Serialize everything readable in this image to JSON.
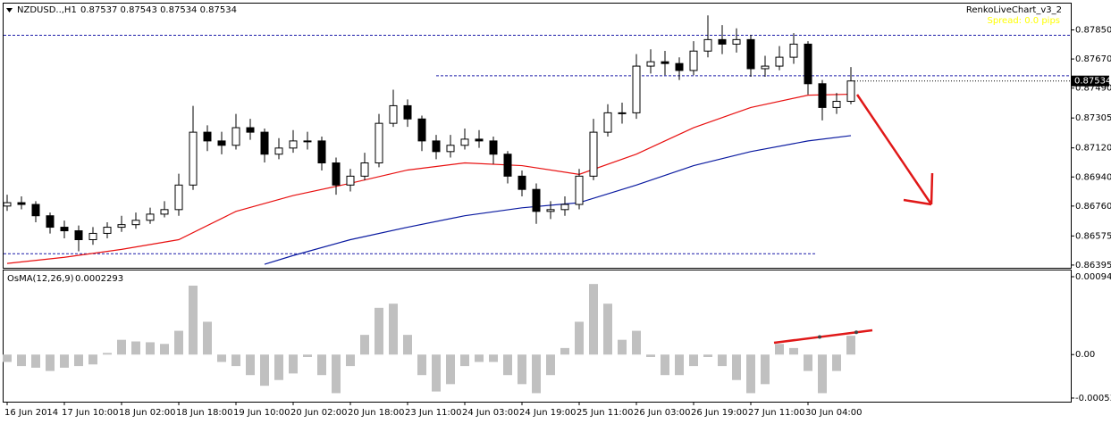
{
  "chart_data": [
    {
      "type": "candlestick",
      "title": "NZDUSD..,H1",
      "subtitle": "0.87537 0.87543 0.87534 0.87534",
      "watermark": [
        "RenkoLiveChart_v3_2",
        "Spread: 0.0 pips"
      ],
      "categories": [
        "16 Jun 2014",
        null,
        null,
        null,
        "17 Jun 10:00",
        null,
        null,
        null,
        "18 Jun 02:00",
        null,
        null,
        null,
        "18 Jun 18:00",
        null,
        null,
        null,
        "19 Jun 10:00",
        null,
        null,
        null,
        "20 Jun 02:00",
        null,
        null,
        null,
        "20 Jun 18:00",
        null,
        null,
        null,
        "23 Jun 11:00",
        null,
        null,
        null,
        "24 Jun 03:00",
        null,
        null,
        null,
        "24 Jun 19:00",
        null,
        null,
        null,
        "25 Jun 11:00",
        null,
        null,
        null,
        "26 Jun 03:00",
        null,
        null,
        null,
        "26 Jun 19:00",
        null,
        null,
        null,
        "27 Jun 11:00",
        null,
        null,
        null,
        "30 Jun 04:00",
        null,
        null,
        null
      ],
      "open": [
        0.8676,
        0.86781,
        0.8677,
        0.867,
        0.86629,
        0.86607,
        0.86552,
        0.86591,
        0.86629,
        0.86645,
        0.86672,
        0.8671,
        0.86738,
        0.8689,
        0.87217,
        0.87163,
        0.87136,
        0.87245,
        0.87217,
        0.87081,
        0.87119,
        0.87163,
        0.87163,
        0.87027,
        0.8689,
        0.86945,
        0.87027,
        0.87272,
        0.87381,
        0.87299,
        0.87163,
        0.87097,
        0.87136,
        0.87174,
        0.87163,
        0.87081,
        0.86945,
        0.86863,
        0.86727,
        0.86738,
        0.8677,
        0.86945,
        0.87217,
        0.87337,
        0.87337,
        0.87626,
        0.87653,
        0.87642,
        0.87599,
        0.87719,
        0.8779,
        0.87762,
        0.8779,
        0.8761,
        0.87626,
        0.87681,
        0.87762,
        0.87517,
        0.8737,
        0.87408
      ],
      "high": [
        0.8683,
        0.8682,
        0.8679,
        0.8672,
        0.8667,
        0.8664,
        0.8663,
        0.8666,
        0.867,
        0.8672,
        0.8675,
        0.8679,
        0.8696,
        0.8738,
        0.8726,
        0.8722,
        0.8733,
        0.873,
        0.8724,
        0.8718,
        0.8723,
        0.8722,
        0.8719,
        0.8706,
        0.8699,
        0.8709,
        0.8733,
        0.8748,
        0.8742,
        0.8732,
        0.872,
        0.872,
        0.8724,
        0.8723,
        0.8719,
        0.871,
        0.8698,
        0.869,
        0.8679,
        0.8682,
        0.8699,
        0.873,
        0.8739,
        0.874,
        0.877,
        0.8773,
        0.8772,
        0.8768,
        0.8778,
        0.8794,
        0.8788,
        0.8786,
        0.8782,
        0.8769,
        0.8775,
        0.8783,
        0.8778,
        0.8754,
        0.8746,
        0.8762
      ],
      "low": [
        0.8673,
        0.8674,
        0.8666,
        0.8659,
        0.8656,
        0.8648,
        0.8652,
        0.8656,
        0.866,
        0.8662,
        0.8665,
        0.8669,
        0.867,
        0.8686,
        0.871,
        0.8708,
        0.8711,
        0.8717,
        0.8703,
        0.8705,
        0.8709,
        0.8711,
        0.8698,
        0.8683,
        0.8685,
        0.8692,
        0.87,
        0.8725,
        0.8725,
        0.871,
        0.8705,
        0.8706,
        0.8711,
        0.8712,
        0.8702,
        0.869,
        0.8682,
        0.8665,
        0.8668,
        0.867,
        0.8674,
        0.8692,
        0.8719,
        0.8727,
        0.873,
        0.8758,
        0.8757,
        0.8754,
        0.8757,
        0.8768,
        0.877,
        0.8771,
        0.8756,
        0.8756,
        0.876,
        0.8764,
        0.8745,
        0.8729,
        0.8733,
        0.8739
      ],
      "close": [
        0.86781,
        0.8677,
        0.867,
        0.86629,
        0.86607,
        0.86552,
        0.86591,
        0.86629,
        0.86645,
        0.86672,
        0.8671,
        0.86738,
        0.8689,
        0.87217,
        0.87163,
        0.87136,
        0.87245,
        0.87217,
        0.87081,
        0.87119,
        0.87163,
        0.87163,
        0.87027,
        0.8689,
        0.86945,
        0.87027,
        0.87272,
        0.87381,
        0.87299,
        0.87163,
        0.87097,
        0.87136,
        0.87174,
        0.87163,
        0.87081,
        0.86945,
        0.86863,
        0.86727,
        0.86738,
        0.8677,
        0.86945,
        0.87217,
        0.87337,
        0.87337,
        0.87626,
        0.87653,
        0.87642,
        0.87599,
        0.87719,
        0.8779,
        0.87762,
        0.8779,
        0.8761,
        0.87626,
        0.87681,
        0.87762,
        0.87517,
        0.8737,
        0.87408,
        0.87534
      ],
      "lines": [
        {
          "color": "#e81010",
          "x": [
            0,
            4,
            8,
            12,
            16,
            20,
            24,
            28,
            32,
            36,
            40,
            44,
            48,
            52,
            56,
            59
          ],
          "values": [
            0.86405,
            0.86443,
            0.86492,
            0.86552,
            0.86727,
            0.86825,
            0.86901,
            0.86983,
            0.87027,
            0.8701,
            0.86956,
            0.87081,
            0.87245,
            0.8737,
            0.87446,
            0.87452
          ]
        },
        {
          "color": "#0a1aa0",
          "x": [
            18,
            20,
            24,
            28,
            32,
            36,
            40,
            44,
            48,
            52,
            56,
            59
          ],
          "values": [
            0.864,
            0.86454,
            0.86552,
            0.86629,
            0.867,
            0.86749,
            0.86781,
            0.8689,
            0.8701,
            0.87097,
            0.87163,
            0.87196
          ]
        }
      ],
      "levels": [
        {
          "value": 0.87817
        },
        {
          "value": 0.87566,
          "from": 30
        },
        {
          "value": 0.86465,
          "to": 56.5
        }
      ],
      "level_color": "#1a1aa8",
      "last_price": {
        "value": 0.87534,
        "label": "0.87534"
      },
      "ylim": [
        0.86378,
        0.88013
      ],
      "yticks": [
        {
          "value": 0.8785,
          "label": "0.87850"
        },
        {
          "value": 0.8767,
          "label": "0.87670"
        },
        {
          "value": 0.8749,
          "label": "0.87490"
        },
        0.87305,
        {
          "value": 0.8712,
          "label": "0.87120"
        },
        {
          "value": 0.8694,
          "label": "0.86940"
        },
        {
          "value": 0.8676,
          "label": "0.86760"
        },
        0.86575,
        0.86395
      ]
    },
    {
      "type": "bar",
      "title": "OsMA(12,26,9)",
      "last_value": 0.0002293,
      "color": "#c0c0c0",
      "values": [
        -9e-05,
        -0.00014,
        -0.00016,
        -0.0002,
        -0.00016,
        -0.00014,
        -0.00012,
        2e-05,
        0.00018,
        0.00016,
        0.00015,
        0.00013,
        0.00029,
        0.00084,
        0.0004,
        -9e-05,
        -0.00014,
        -0.00025,
        -0.00038,
        -0.00031,
        -0.00023,
        -3e-05,
        -0.00025,
        -0.00047,
        -0.00014,
        0.00024,
        0.00057,
        0.00062,
        0.00024,
        -0.00025,
        -0.00045,
        -0.00036,
        -0.00014,
        -9e-05,
        -9e-05,
        -0.00025,
        -0.00036,
        -0.00047,
        -0.00025,
        8e-05,
        0.0004,
        0.00086,
        0.00062,
        0.00018,
        0.00029,
        -3e-05,
        -0.00025,
        -0.00025,
        -0.00014,
        -3e-05,
        -0.00014,
        -0.00031,
        -0.00047,
        -0.00036,
        0.00013,
        8e-05,
        -0.0002,
        -0.00047,
        -0.0002,
        0.0002293
      ],
      "ylim": [
        -0.000574,
        0.001025
      ],
      "yticks": [
        0.000949,
        {
          "value": 0,
          "label": "0.00"
        },
        -0.00053
      ]
    }
  ]
}
